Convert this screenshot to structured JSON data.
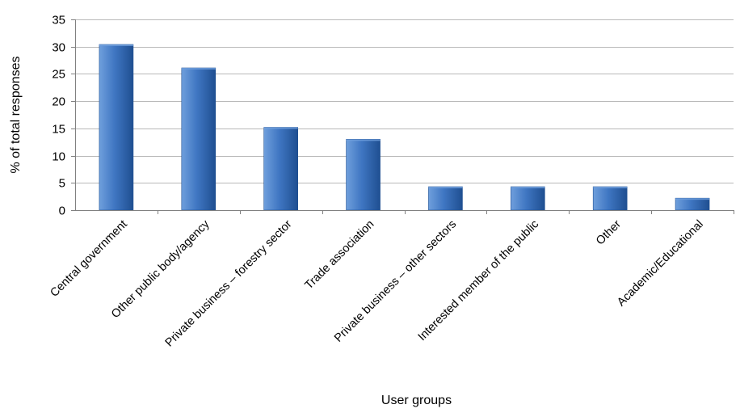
{
  "chart_data": {
    "type": "bar",
    "title": "",
    "xlabel": "User groups",
    "ylabel": "% of total responses",
    "ylim": [
      0,
      35
    ],
    "yticks": [
      0,
      5,
      10,
      15,
      20,
      25,
      30,
      35
    ],
    "grid": true,
    "legend": "none",
    "categories": [
      "Central government",
      "Other public body/agency",
      "Private business – forestry sector",
      "Trade association",
      "Private business – other sectors",
      "Interested member of the public",
      "Other",
      "Academic/Educational"
    ],
    "values": [
      30.4,
      26.1,
      15.2,
      13.0,
      4.3,
      4.3,
      4.3,
      2.2
    ],
    "colors": {
      "bar_light": "#6f9fdc",
      "bar_mid": "#3f76c2",
      "bar_dark": "#1f4f91",
      "grid": "#b9b9b9",
      "axis": "#808080"
    }
  }
}
